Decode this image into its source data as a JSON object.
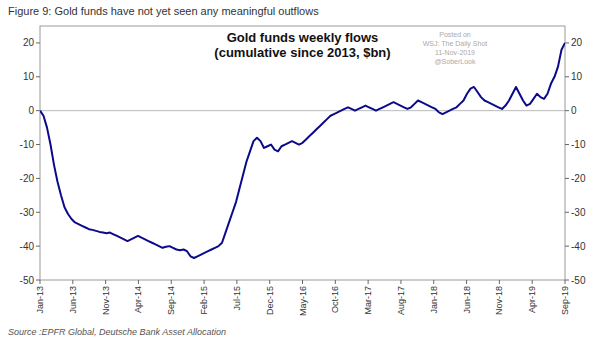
{
  "chart_data": {
    "type": "line",
    "title": "Gold funds weekly flows",
    "subtitle": "(cumulative since 2013, $bn)",
    "caption": "Figure 9: Gold funds have not yet seen any meaningful outflows",
    "source": "Source :EPFR Global, Deutsche Bank Asset Allocation",
    "annotations": [
      "Posted on",
      "WSJ: The Daily Shot",
      "11-Nov-2019",
      "@SoberLook"
    ],
    "color": "#0a0a8a",
    "grid": false,
    "xlim": [
      0,
      80
    ],
    "xticks": [
      {
        "value": 0,
        "label": "Jan-13"
      },
      {
        "value": 5,
        "label": "Jun-13"
      },
      {
        "value": 10,
        "label": "Nov-13"
      },
      {
        "value": 15,
        "label": "Apr-14"
      },
      {
        "value": 20,
        "label": "Sep-14"
      },
      {
        "value": 25,
        "label": "Feb-15"
      },
      {
        "value": 30,
        "label": "Jul-15"
      },
      {
        "value": 35,
        "label": "Dec-15"
      },
      {
        "value": 40,
        "label": "May-16"
      },
      {
        "value": 45,
        "label": "Oct-16"
      },
      {
        "value": 50,
        "label": "Mar-17"
      },
      {
        "value": 55,
        "label": "Aug-17"
      },
      {
        "value": 60,
        "label": "Jan-18"
      },
      {
        "value": 65,
        "label": "Jun-18"
      },
      {
        "value": 70,
        "label": "Nov-18"
      },
      {
        "value": 75,
        "label": "Apr-19"
      },
      {
        "value": 80,
        "label": "Sep-19"
      }
    ],
    "ylim": [
      -50,
      25
    ],
    "yticks": [
      -50,
      -40,
      -30,
      -20,
      -10,
      0,
      10,
      20
    ],
    "y2lim": [
      -50,
      25
    ],
    "y2ticks": [
      -50,
      -40,
      -30,
      -20,
      -10,
      0,
      10,
      20
    ],
    "x": [
      0,
      0.5333,
      1.0667,
      1.6,
      2.1333,
      2.6667,
      3.2,
      3.7333,
      4.2667,
      4.8,
      5.3333,
      5.8667,
      6.4,
      6.9333,
      7.4667,
      8,
      8.5333,
      9.0667,
      9.6,
      10.1333,
      10.6667,
      11.2,
      11.7333,
      12.2667,
      12.8,
      13.3333,
      13.8667,
      14.4,
      14.9333,
      15.4667,
      16,
      16.5333,
      17.0667,
      17.6,
      18.1333,
      18.6667,
      19.2,
      19.7333,
      20.2667,
      20.8,
      21.3333,
      21.8667,
      22.4,
      22.9333,
      23.4667,
      24,
      24.5333,
      25.0667,
      25.6,
      26.1333,
      26.6667,
      27.2,
      27.7333,
      28.2667,
      28.8,
      29.3333,
      29.8667,
      30.4,
      30.9333,
      31.4667,
      32,
      32.5333,
      33.0667,
      33.6,
      34.1333,
      34.6667,
      35.2,
      35.7333,
      36.2667,
      36.8,
      37.3333,
      37.8667,
      38.4,
      38.9333,
      39.4667,
      40,
      40.5333,
      41.0667,
      41.6,
      42.1333,
      42.6667,
      43.2,
      43.7333,
      44.2667,
      44.8,
      45.3333,
      45.8667,
      46.4,
      46.9333,
      47.4667,
      48,
      48.5333,
      49.0667,
      49.6,
      50.1333,
      50.6667,
      51.2,
      51.7333,
      52.2667,
      52.8,
      53.3333,
      53.8667,
      54.4,
      54.9333,
      55.4667,
      56,
      56.5333,
      57.0667,
      57.6,
      58.1333,
      58.6667,
      59.2,
      59.7333,
      60.2667,
      60.8,
      61.3333,
      61.8667,
      62.4,
      62.9333,
      63.4667,
      64,
      64.5333,
      65.0667,
      65.6,
      66.1333,
      66.6667,
      67.2,
      67.7333,
      68.2667,
      68.8,
      69.3333,
      69.8667,
      70.4,
      70.9333,
      71.4667,
      72,
      72.5333,
      73.0667,
      73.6,
      74.1333,
      74.6667,
      75.2,
      75.7333,
      76.2667,
      76.8,
      77.3333,
      77.8667,
      78.4,
      78.9333,
      79.4667,
      80
    ],
    "values": [
      0.0,
      -1.5,
      -5.0,
      -10.0,
      -16.0,
      -21.0,
      -25.0,
      -28.5,
      -30.5,
      -32.0,
      -33.0,
      -33.5,
      -34.0,
      -34.5,
      -35.0,
      -35.2,
      -35.5,
      -35.8,
      -36.0,
      -36.2,
      -36.0,
      -36.5,
      -37.0,
      -37.5,
      -38.0,
      -38.5,
      -38.0,
      -37.5,
      -37.0,
      -37.5,
      -38.0,
      -38.5,
      -39.0,
      -39.5,
      -40.0,
      -40.5,
      -40.2,
      -40.0,
      -40.5,
      -41.0,
      -41.2,
      -41.0,
      -41.5,
      -43.0,
      -43.5,
      -43.0,
      -42.5,
      -42.0,
      -41.5,
      -41.0,
      -40.5,
      -40.0,
      -39.0,
      -36.0,
      -33.0,
      -30.0,
      -27.0,
      -23.0,
      -19.0,
      -15.0,
      -12.0,
      -9.0,
      -8.0,
      -9.0,
      -11.0,
      -10.5,
      -10.0,
      -11.5,
      -12.0,
      -10.5,
      -10.0,
      -9.5,
      -9.0,
      -9.5,
      -10.0,
      -9.5,
      -8.5,
      -7.5,
      -6.5,
      -5.5,
      -4.5,
      -3.5,
      -2.5,
      -1.5,
      -1.0,
      -0.5,
      0.0,
      0.5,
      1.0,
      0.5,
      0.0,
      0.5,
      1.0,
      1.5,
      1.0,
      0.5,
      0.0,
      0.5,
      1.0,
      1.5,
      2.0,
      2.5,
      2.0,
      1.5,
      1.0,
      0.5,
      1.0,
      2.0,
      3.0,
      2.5,
      2.0,
      1.5,
      1.0,
      0.5,
      -0.5,
      -1.0,
      -0.5,
      0.0,
      0.5,
      1.0,
      2.0,
      3.0,
      5.0,
      6.5,
      7.0,
      5.5,
      4.0,
      3.0,
      2.5,
      2.0,
      1.5,
      1.0,
      0.5,
      1.5,
      3.0,
      5.0,
      7.0,
      5.0,
      3.0,
      1.5,
      2.0,
      3.5,
      5.0,
      4.0,
      3.5,
      5.0,
      8.0,
      10.0,
      13.0,
      18.0,
      20.0
    ]
  }
}
